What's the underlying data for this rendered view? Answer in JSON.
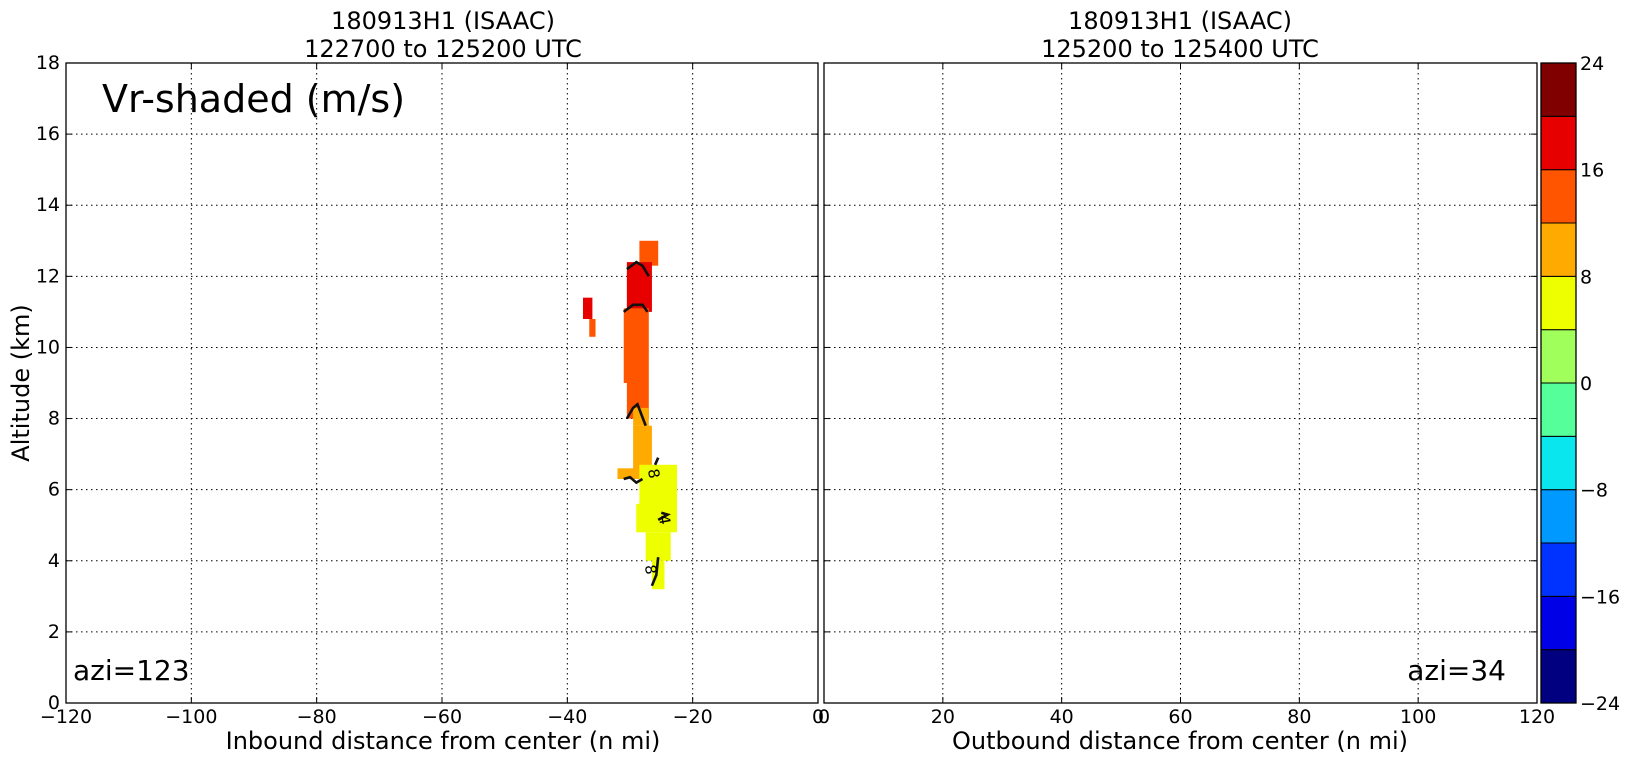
{
  "colors": {
    "colorbar": [
      "#000080",
      "#0000e6",
      "#0033ff",
      "#0099ff",
      "#0ae6ee",
      "#55ff99",
      "#a0ff5a",
      "#eeff00",
      "#ffaa00",
      "#ff5500",
      "#e60000",
      "#800000"
    ]
  },
  "chart_data": [
    {
      "type": "heatmap",
      "title_line1": "180913H1 (ISAAC)",
      "title_line2": "122700 to 125200 UTC",
      "xlabel": "Inbound distance from center (n mi)",
      "ylabel": "Altitude (km)",
      "xlim": [
        -120,
        0
      ],
      "ylim": [
        0,
        18
      ],
      "xticks": [
        "−120",
        "−100",
        "−80",
        "−60",
        "−40",
        "−20",
        "0"
      ],
      "yticks": [
        "0",
        "2",
        "4",
        "6",
        "8",
        "10",
        "12",
        "14",
        "16",
        "18"
      ],
      "grid": true,
      "annotation": "Vr-shaded (m/s)",
      "azimuth_label": "azi=123",
      "contour_labels": [
        "8",
        "4",
        "8"
      ],
      "cells": [
        {
          "x0": -28.5,
          "x1": -25.5,
          "y0": 12.3,
          "y1": 13.0,
          "v": 14
        },
        {
          "x0": -30.5,
          "x1": -26.5,
          "y0": 11.0,
          "y1": 12.4,
          "v": 17
        },
        {
          "x0": -37.5,
          "x1": -36.0,
          "y0": 10.8,
          "y1": 11.4,
          "v": 17
        },
        {
          "x0": -36.5,
          "x1": -35.5,
          "y0": 10.3,
          "y1": 10.8,
          "v": 14
        },
        {
          "x0": -31.0,
          "x1": -27.0,
          "y0": 9.0,
          "y1": 11.1,
          "v": 14
        },
        {
          "x0": -30.5,
          "x1": -27.0,
          "y0": 8.0,
          "y1": 9.0,
          "v": 14
        },
        {
          "x0": -29.5,
          "x1": -27.0,
          "y0": 7.8,
          "y1": 8.3,
          "v": 10
        },
        {
          "x0": -29.5,
          "x1": -26.5,
          "y0": 6.5,
          "y1": 7.8,
          "v": 10
        },
        {
          "x0": -32.0,
          "x1": -26.0,
          "y0": 6.3,
          "y1": 6.6,
          "v": 10
        },
        {
          "x0": -28.5,
          "x1": -22.5,
          "y0": 5.5,
          "y1": 6.7,
          "v": 6
        },
        {
          "x0": -29.0,
          "x1": -22.5,
          "y0": 4.8,
          "y1": 5.6,
          "v": 6
        },
        {
          "x0": -27.5,
          "x1": -23.5,
          "y0": 4.0,
          "y1": 4.8,
          "v": 6
        },
        {
          "x0": -26.5,
          "x1": -24.5,
          "y0": 3.2,
          "y1": 4.0,
          "v": 6
        }
      ]
    },
    {
      "type": "heatmap",
      "title_line1": "180913H1 (ISAAC)",
      "title_line2": "125200 to 125400 UTC",
      "xlabel": "Outbound distance from center (n mi)",
      "ylabel": "",
      "xlim": [
        0,
        120
      ],
      "ylim": [
        0,
        18
      ],
      "xticks": [
        "0",
        "20",
        "40",
        "60",
        "80",
        "100",
        "120"
      ],
      "yticks": [],
      "grid": true,
      "azimuth_label": "azi=34",
      "cells": []
    }
  ],
  "colorbar": {
    "range": [
      -24,
      24
    ],
    "step": 4,
    "tick_labels": [
      "−24",
      "−16",
      "−8",
      "0",
      "8",
      "16",
      "24"
    ]
  }
}
